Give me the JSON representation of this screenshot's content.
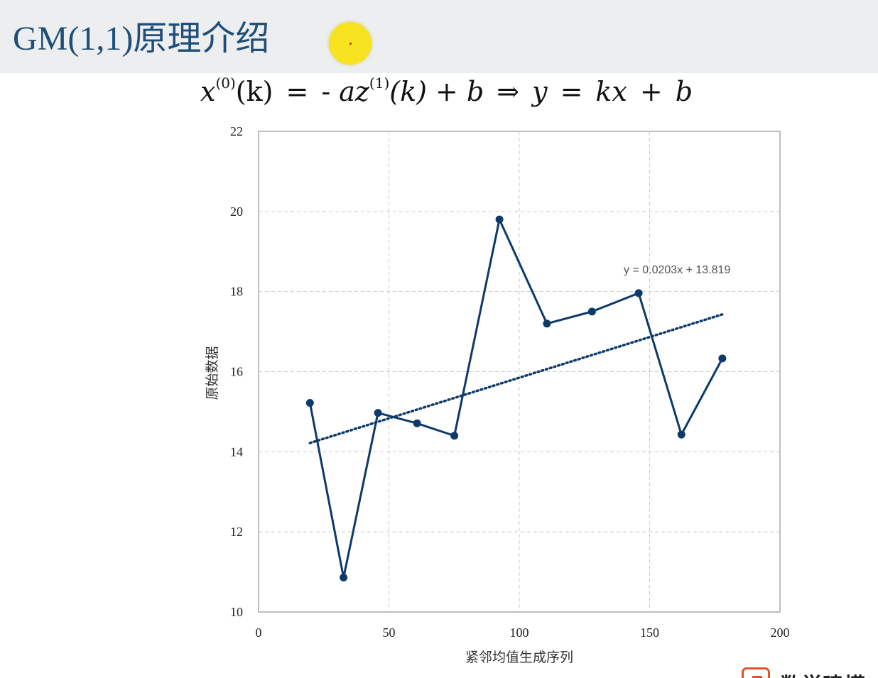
{
  "slide": {
    "title": "GM(1,1)原理介绍"
  },
  "formula": {
    "lhs_var": "x",
    "lhs_sup": "(0)",
    "lhs_arg": "(k)",
    "eq1": "=",
    "rhs1": "- az",
    "rhs1_sup": "(1)",
    "rhs1_arg": "(k) + b",
    "implies": "⇒",
    "rhs2_y": "y",
    "eq2": "=",
    "rhs2_kx": "kx",
    "plus": "+",
    "rhs2_b": "b"
  },
  "chart_data": {
    "type": "line",
    "xlabel": "紧邻均值生成序列",
    "ylabel": "原始数据",
    "xlim": [
      0,
      200
    ],
    "ylim": [
      10,
      22
    ],
    "xticks": [
      "0",
      "50",
      "100",
      "150",
      "200"
    ],
    "yticks": [
      "10",
      "12",
      "14",
      "16",
      "18",
      "20",
      "22"
    ],
    "grid": true,
    "series": [
      {
        "x": [
          19.7,
          32.6,
          45.8,
          60.8,
          75.1,
          92.4,
          110.6,
          127.9,
          145.8,
          162.2,
          177.9
        ],
        "y": [
          15.22,
          10.86,
          14.97,
          14.71,
          14.4,
          19.8,
          17.2,
          17.5,
          17.96,
          14.43,
          16.33
        ],
        "color": "#0d3a6b"
      }
    ],
    "trendline": {
      "x_start": 19.7,
      "x_end": 177.9,
      "slope": 0.0203,
      "intercept": 13.819,
      "label": "y = 0.0203x + 13.819",
      "style": "dotted"
    }
  },
  "logo": {
    "text": "数学建模"
  }
}
